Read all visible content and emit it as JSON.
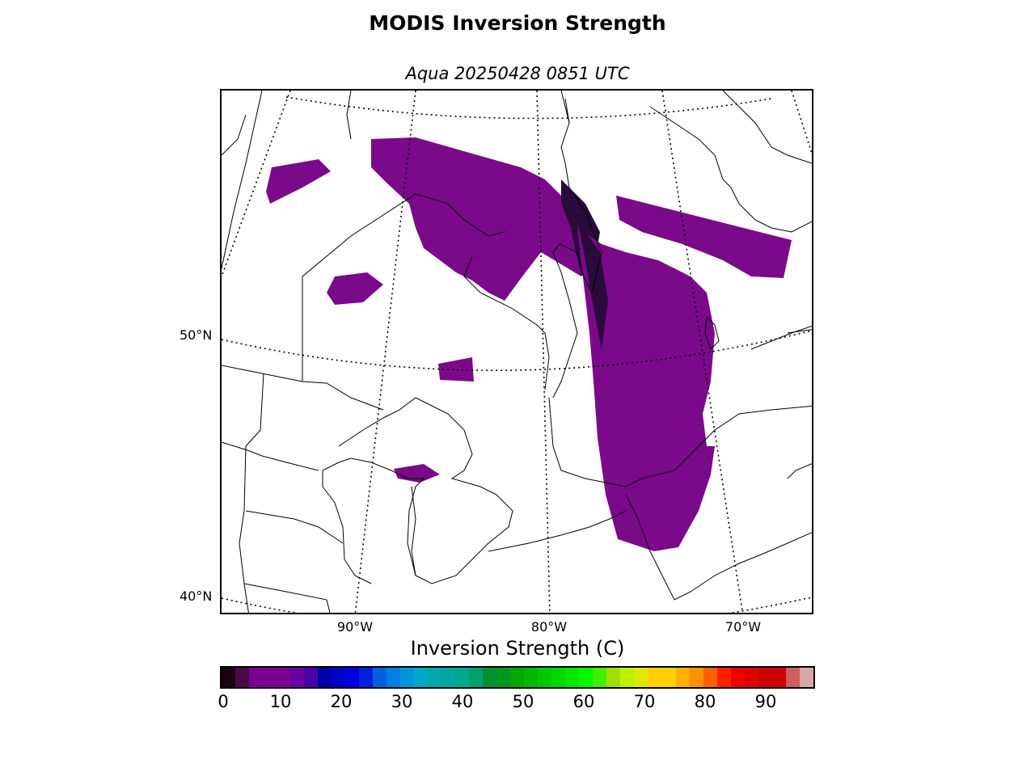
{
  "title": "MODIS Inversion Strength",
  "subtitle": "Aqua 20250428 0851 UTC",
  "map": {
    "lat_labels": [
      "50°N",
      "40°N"
    ],
    "lon_labels": [
      "90°W",
      "80°W",
      "70°W"
    ],
    "data_color_dark": "#2a0a3a",
    "data_color_main": "#7a0a8a"
  },
  "colorbar": {
    "label": "Inversion Strength (C)",
    "ticks": [
      "0",
      "10",
      "20",
      "30",
      "40",
      "50",
      "60",
      "70",
      "80",
      "90"
    ],
    "colors": [
      "#1a0010",
      "#4a0a4a",
      "#7a0090",
      "#7a0090",
      "#7a0090",
      "#6a00a0",
      "#4a00a8",
      "#0000aa",
      "#0000c8",
      "#0000dd",
      "#0020e0",
      "#0060e0",
      "#0080e0",
      "#0098d8",
      "#00a8c8",
      "#00a8b0",
      "#00a8a0",
      "#00a890",
      "#00a070",
      "#009030",
      "#009820",
      "#00a800",
      "#00b800",
      "#00c800",
      "#00d800",
      "#00e800",
      "#00f800",
      "#40f000",
      "#a0e000",
      "#c0f000",
      "#e0e800",
      "#ffd000",
      "#ffd000",
      "#ffb000",
      "#ff9000",
      "#ff6000",
      "#ff2000",
      "#ee0000",
      "#dd0000",
      "#cc0000",
      "#cc0000",
      "#cc6060",
      "#d8a8a8"
    ]
  }
}
